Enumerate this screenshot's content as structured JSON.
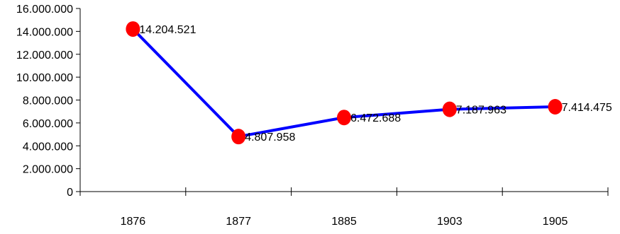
{
  "chart_data": {
    "type": "line",
    "categories": [
      "1876",
      "1877",
      "1885",
      "1903",
      "1905"
    ],
    "values": [
      14204521,
      4807958,
      6472688,
      7187963,
      7414475
    ],
    "data_labels": [
      "14.204.521",
      "4.807.958",
      "6.472.688",
      "7.187.963",
      "7.414.475"
    ],
    "y_ticks": [
      0,
      2000000,
      4000000,
      6000000,
      8000000,
      10000000,
      12000000,
      14000000,
      16000000
    ],
    "y_tick_labels": [
      "0",
      "2.000.000",
      "4.000.000",
      "6.000.000",
      "8.000.000",
      "10.000.000",
      "12.000.000",
      "14.000.000",
      "16.000.000"
    ],
    "ylim": [
      0,
      16000000
    ],
    "grid": false,
    "legend": "none",
    "title": "",
    "xlabel": "",
    "ylabel": "",
    "colors": {
      "line": "#0000ff",
      "marker": "#ff0000",
      "axis": "#000000"
    }
  }
}
